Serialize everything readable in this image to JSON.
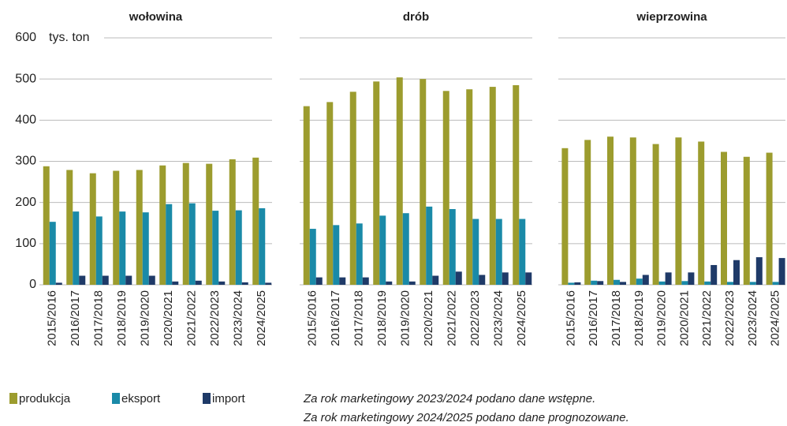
{
  "chart_data": [
    {
      "type": "bar",
      "title": "wołowina",
      "y_label": "tys. ton",
      "categories": [
        "2015/2016",
        "2016/2017",
        "2017/2018",
        "2018/2019",
        "2019/2020",
        "2020/2021",
        "2021/2022",
        "2022/2023",
        "2023/2024",
        "2024/2025"
      ],
      "series": [
        {
          "name": "produkcja",
          "color": "#9c9c2e",
          "values": [
            288,
            279,
            271,
            277,
            279,
            290,
            296,
            294,
            305,
            309
          ]
        },
        {
          "name": "eksport",
          "color": "#1a8aa8",
          "values": [
            153,
            178,
            166,
            178,
            176,
            196,
            198,
            180,
            181,
            186
          ]
        },
        {
          "name": "import",
          "color": "#1f3a68",
          "values": [
            5,
            22,
            22,
            22,
            22,
            8,
            10,
            8,
            6,
            5
          ]
        }
      ],
      "ylim": [
        0,
        600
      ],
      "yticks": [
        0,
        100,
        200,
        300,
        400,
        500,
        600
      ],
      "grid": true
    },
    {
      "type": "bar",
      "title": "drób",
      "categories": [
        "2015/2016",
        "2016/2017",
        "2017/2018",
        "2018/2019",
        "2019/2020",
        "2020/2021",
        "2021/2022",
        "2022/2023",
        "2023/2024",
        "2024/2025"
      ],
      "series": [
        {
          "name": "produkcja",
          "color": "#9c9c2e",
          "values": [
            434,
            444,
            469,
            494,
            504,
            500,
            471,
            475,
            481,
            485
          ]
        },
        {
          "name": "eksport",
          "color": "#1a8aa8",
          "values": [
            136,
            145,
            149,
            168,
            174,
            190,
            184,
            160,
            160,
            160
          ]
        },
        {
          "name": "import",
          "color": "#1f3a68",
          "values": [
            18,
            18,
            18,
            8,
            8,
            22,
            32,
            24,
            30,
            30
          ]
        }
      ],
      "ylim": [
        0,
        600
      ],
      "yticks": [
        0,
        100,
        200,
        300,
        400,
        500,
        600
      ],
      "grid": true
    },
    {
      "type": "bar",
      "title": "wieprzowina",
      "categories": [
        "2015/2016",
        "2016/2017",
        "2017/2018",
        "2018/2019",
        "2019/2020",
        "2020/2021",
        "2021/2022",
        "2022/2023",
        "2023/2024",
        "2024/2025"
      ],
      "series": [
        {
          "name": "produkcja",
          "color": "#9c9c2e",
          "values": [
            332,
            352,
            360,
            358,
            342,
            358,
            348,
            323,
            311,
            321
          ]
        },
        {
          "name": "eksport",
          "color": "#1a8aa8",
          "values": [
            5,
            10,
            12,
            15,
            8,
            9,
            8,
            7,
            7,
            7
          ]
        },
        {
          "name": "import",
          "color": "#1f3a68",
          "values": [
            6,
            9,
            7,
            24,
            30,
            30,
            48,
            60,
            67,
            65
          ]
        }
      ],
      "ylim": [
        0,
        600
      ],
      "yticks": [
        0,
        100,
        200,
        300,
        400,
        500,
        600
      ],
      "grid": true
    }
  ],
  "notes": [
    "Za rok marketingowy 2023/2024 podano dane wstępne.",
    "Za rok marketingowy 2024/2025 podano dane prognozowane."
  ]
}
